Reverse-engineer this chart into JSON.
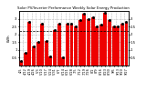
{
  "title": "Solar PV/Inverter Performance Weekly Solar Energy Production",
  "ylabel": "kWh",
  "bar_color": "#ee0000",
  "marker_color": "#000000",
  "bg_color": "#ffffff",
  "grid_color": "#bbbbbb",
  "weeks": [
    "4/5",
    "4/12",
    "4/19",
    "4/26",
    "5/3",
    "5/10",
    "5/17",
    "5/24",
    "5/31",
    "6/7",
    "6/14",
    "6/21",
    "6/28",
    "7/5",
    "7/12",
    "7/19",
    "7/26",
    "8/2",
    "8/9",
    "8/16",
    "8/23",
    "8/30",
    "9/6",
    "9/13",
    "9/20",
    "9/27"
  ],
  "values": [
    0.3,
    0.8,
    2.8,
    1.2,
    1.5,
    2.7,
    1.6,
    0.6,
    2.3,
    2.7,
    0.5,
    2.7,
    2.7,
    2.5,
    2.9,
    3.3,
    3.0,
    3.1,
    2.5,
    2.6,
    3.4,
    2.9,
    2.5,
    2.5,
    2.7,
    2.8
  ],
  "avg_line": 2.2,
  "ylim": [
    0,
    3.5
  ],
  "yticks": [
    0.5,
    1.0,
    1.5,
    2.0,
    2.5,
    3.0
  ],
  "ytick_labels": [
    "0.5",
    "1",
    "1.5",
    "2",
    "2.5",
    "3"
  ]
}
